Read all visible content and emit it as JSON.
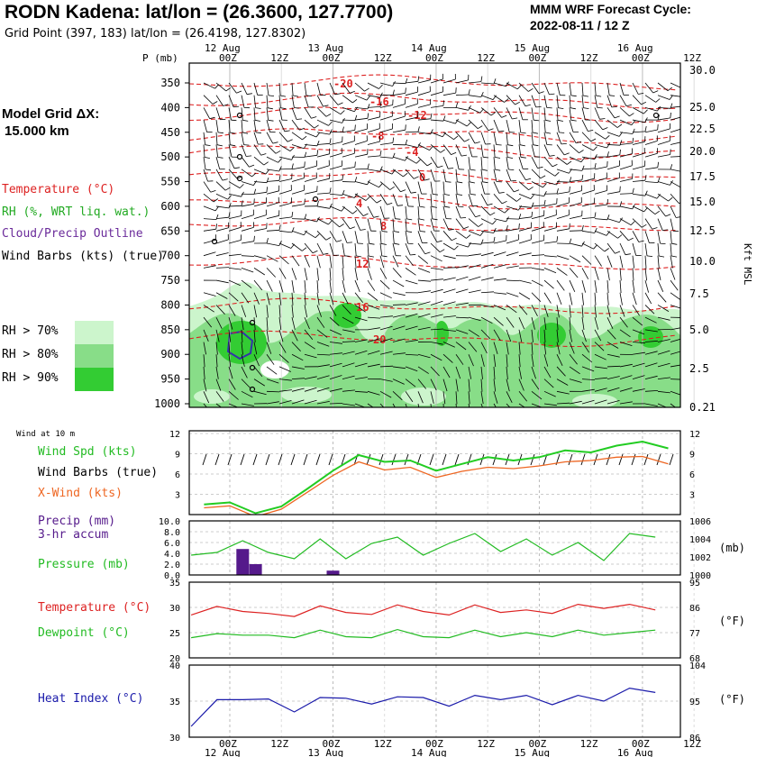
{
  "header": {
    "title": "RODN Kadena:  lat/lon = (26.3600, 127.7700)",
    "subtitle": "Grid Point (397, 183) lat/lon = (26.4198, 127.8302)",
    "cycle_line1": "MMM WRF Forecast Cycle:",
    "cycle_line2": "2022-08-11 / 12  Z"
  },
  "grid_spacing": {
    "line1": "Model Grid ΔX:",
    "line2": "15.000 km"
  },
  "legend": {
    "temperature": "Temperature (°C)",
    "rh": "RH (%, WRT liq. wat.)",
    "cloud": "Cloud/Precip Outline",
    "barbs": "Wind Barbs (kts) (true)",
    "rh70": "RH > 70%",
    "rh80": "RH > 80%",
    "rh90": "RH > 90%"
  },
  "colors": {
    "rh70": "#ccf5cc",
    "rh80": "#88dd88",
    "rh90": "#33cc33",
    "temperature": "#dd2222",
    "wind_speed": "#22cc22",
    "x_wind": "#ee6622",
    "precip": "#551a8b",
    "pressure": "#22bb22",
    "dewpoint": "#22bb22",
    "heat_index": "#1a1aaa"
  },
  "time_axis": {
    "dates": [
      "12 Aug",
      "13 Aug",
      "14 Aug",
      "15 Aug",
      "16 Aug"
    ],
    "ticks": [
      "00Z",
      "12Z",
      "00Z",
      "12Z",
      "00Z",
      "12Z",
      "00Z",
      "12Z",
      "00Z",
      "12Z"
    ]
  },
  "sounding": {
    "p_label": "P  (mb)",
    "pressure_levels": [
      "350",
      "400",
      "450",
      "500",
      "550",
      "600",
      "650",
      "700",
      "750",
      "800",
      "850",
      "900",
      "950",
      "1000"
    ],
    "height_ticks": [
      "30.0",
      "25.0",
      "22.5",
      "20.0",
      "17.5",
      "15.0",
      "12.5",
      "10.0",
      "7.5",
      "5.0",
      "2.5",
      "0.21"
    ],
    "height_unit": "Kft MSL",
    "isotherm_labels": [
      "-20",
      "-16",
      "-12",
      "-8",
      "-4",
      "0",
      "4",
      "8",
      "12",
      "16",
      "20"
    ]
  },
  "wind_panel": {
    "header": "Wind at 10 m",
    "label_speed": "Wind Spd (kts)",
    "label_barbs": "Wind Barbs (true)",
    "label_xwind": "X-Wind (kts)",
    "left_ticks": [
      "12",
      "9",
      "6",
      "3"
    ],
    "right_ticks": [
      "12",
      "9",
      "6",
      "3"
    ]
  },
  "precip_panel": {
    "label_precip": "Precip (mm)",
    "label_accum": "3-hr accum",
    "label_pressure": "Pressure (mb)",
    "left_ticks": [
      "10.0",
      "8.0",
      "6.0",
      "4.0",
      "2.0",
      "0.0"
    ],
    "right_ticks": [
      "1006",
      "1004",
      "1002",
      "1000"
    ],
    "right_unit": "(mb)"
  },
  "temp_panel": {
    "label_temp": "Temperature (°C)",
    "label_dew": "Dewpoint (°C)",
    "left_ticks": [
      "35",
      "30",
      "25",
      "20"
    ],
    "right_ticks": [
      "95",
      "86",
      "77",
      "68"
    ],
    "right_unit": "(°F)"
  },
  "heat_panel": {
    "label": "Heat Index (°C)",
    "left_ticks": [
      "40",
      "35",
      "30"
    ],
    "right_ticks": [
      "104",
      "95",
      "86"
    ],
    "right_unit": "(°F)"
  },
  "chart_data": [
    {
      "type": "line",
      "title": "10 m wind",
      "x": [
        "12 Aug 00Z",
        "12 Aug 06Z",
        "12 Aug 12Z",
        "12 Aug 18Z",
        "13 Aug 00Z",
        "13 Aug 06Z",
        "13 Aug 12Z",
        "13 Aug 18Z",
        "14 Aug 00Z",
        "14 Aug 06Z",
        "14 Aug 12Z",
        "14 Aug 18Z",
        "15 Aug 00Z",
        "15 Aug 06Z",
        "15 Aug 12Z",
        "15 Aug 18Z",
        "16 Aug 00Z",
        "16 Aug 06Z",
        "16 Aug 12Z"
      ],
      "series": [
        {
          "name": "Wind Spd (kts)",
          "values": [
            1.5,
            1.8,
            0.2,
            1.2,
            3.8,
            6.5,
            8.8,
            7.8,
            8.0,
            6.5,
            7.5,
            8.5,
            8.0,
            8.5,
            9.5,
            9.2,
            10.2,
            10.8,
            9.8
          ]
        },
        {
          "name": "X-Wind (kts)",
          "values": [
            1.0,
            1.3,
            -0.3,
            0.8,
            3.3,
            5.8,
            7.8,
            6.6,
            7.0,
            5.5,
            6.4,
            7.0,
            6.8,
            7.2,
            7.8,
            8.0,
            8.5,
            8.6,
            7.5
          ]
        }
      ],
      "ylim": [
        0,
        12
      ]
    },
    {
      "type": "bar",
      "title": "Precip (mm) 3-hr accum / Pressure (mb)",
      "categories": [
        "12 Aug 03Z",
        "12 Aug 06Z",
        "13 Aug 00Z"
      ],
      "values": [
        4.8,
        2.0,
        0.8
      ],
      "ylim": [
        0,
        10
      ],
      "pressure_mb": {
        "x_hours": [
          0,
          6,
          12,
          18,
          24,
          30,
          36,
          42,
          48,
          54,
          60,
          66,
          72,
          78,
          84,
          90,
          96,
          102,
          108
        ],
        "values": [
          1002.2,
          1002.5,
          1003.8,
          1002.5,
          1001.8,
          1004.0,
          1001.8,
          1003.5,
          1004.2,
          1002.2,
          1003.5,
          1004.6,
          1002.6,
          1004.0,
          1002.2,
          1003.6,
          1001.6,
          1004.6,
          1004.2
        ],
        "ylim": [
          1000,
          1006
        ]
      }
    },
    {
      "type": "line",
      "title": "Temperature / Dewpoint",
      "x_hours": [
        0,
        6,
        12,
        18,
        24,
        30,
        36,
        42,
        48,
        54,
        60,
        66,
        72,
        78,
        84,
        90,
        96,
        102,
        108
      ],
      "series": [
        {
          "name": "Temperature (°C)",
          "values": [
            28.5,
            30.2,
            29.2,
            28.8,
            28.2,
            30.3,
            29.0,
            28.6,
            30.5,
            29.2,
            28.5,
            30.5,
            29.0,
            29.5,
            28.8,
            30.6,
            29.8,
            30.6,
            29.5
          ]
        },
        {
          "name": "Dewpoint (°C)",
          "values": [
            24.0,
            24.8,
            24.5,
            24.5,
            24.0,
            25.5,
            24.2,
            24.0,
            25.6,
            24.2,
            24.0,
            25.5,
            24.2,
            25.0,
            24.2,
            25.5,
            24.5,
            25.0,
            25.5
          ]
        }
      ],
      "ylim": [
        20,
        35
      ]
    },
    {
      "type": "line",
      "title": "Heat Index",
      "x_hours": [
        0,
        6,
        12,
        18,
        24,
        30,
        36,
        42,
        48,
        54,
        60,
        66,
        72,
        78,
        84,
        90,
        96,
        102,
        108
      ],
      "series": [
        {
          "name": "Heat Index (°C)",
          "values": [
            31.5,
            35.2,
            35.2,
            35.3,
            33.5,
            35.5,
            35.4,
            34.6,
            35.6,
            35.5,
            34.3,
            35.8,
            35.2,
            35.8,
            34.5,
            35.8,
            35.0,
            36.8,
            36.2
          ]
        }
      ],
      "ylim": [
        30,
        40
      ]
    }
  ]
}
